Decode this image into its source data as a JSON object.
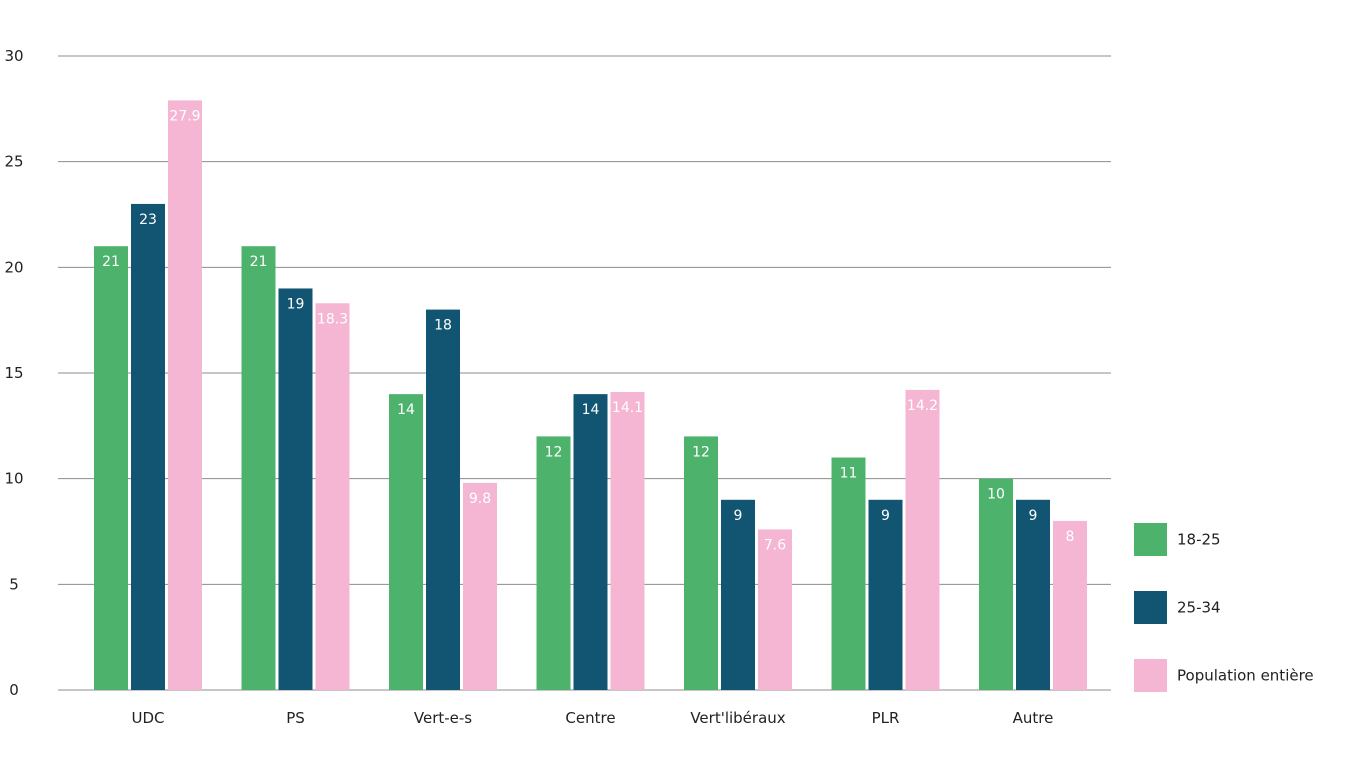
{
  "chart_data": {
    "type": "bar",
    "title": "",
    "xlabel": "",
    "ylabel": "",
    "ylim": [
      0,
      30
    ],
    "yticks": [
      0,
      5,
      10,
      15,
      20,
      25,
      30
    ],
    "grid": true,
    "legend_position": "right",
    "categories": [
      "UDC",
      "PS",
      "Vert-e-s",
      "Centre",
      "Vert'libéraux",
      "PLR",
      "Autre"
    ],
    "series": [
      {
        "name": "18-25",
        "color": "#4db36c",
        "values": [
          21,
          21,
          14,
          12,
          12,
          11,
          10
        ],
        "labels": [
          "21",
          "21",
          "14",
          "12",
          "12",
          "11",
          "10"
        ]
      },
      {
        "name": "25-34",
        "color": "#115572",
        "values": [
          23,
          19,
          18,
          14,
          9,
          9,
          9
        ],
        "labels": [
          "23",
          "19",
          "18",
          "14",
          "9",
          "9",
          "9"
        ]
      },
      {
        "name": "Population entière",
        "color": "#f5b6d4",
        "values": [
          27.9,
          18.3,
          9.8,
          14.1,
          7.6,
          14.2,
          8
        ],
        "labels": [
          "27.9",
          "18.3",
          "9.8",
          "14.1",
          "7.6",
          "14.2",
          "8"
        ]
      }
    ]
  }
}
